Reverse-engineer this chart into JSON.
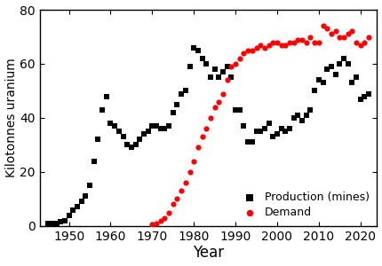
{
  "production_years": [
    1945,
    1946,
    1947,
    1948,
    1949,
    1950,
    1951,
    1952,
    1953,
    1954,
    1955,
    1956,
    1957,
    1958,
    1959,
    1960,
    1961,
    1962,
    1963,
    1964,
    1965,
    1966,
    1967,
    1968,
    1969,
    1970,
    1971,
    1972,
    1973,
    1974,
    1975,
    1976,
    1977,
    1978,
    1979,
    1980,
    1981,
    1982,
    1983,
    1984,
    1985,
    1986,
    1987,
    1988,
    1989,
    1990,
    1991,
    1992,
    1993,
    1994,
    1995,
    1996,
    1997,
    1998,
    1999,
    2000,
    2001,
    2002,
    2003,
    2004,
    2005,
    2006,
    2007,
    2008,
    2009,
    2010,
    2011,
    2012,
    2013,
    2014,
    2015,
    2016,
    2017,
    2018,
    2019,
    2020,
    2021,
    2022
  ],
  "production_values": [
    1.0,
    1.0,
    1.0,
    1.5,
    2.0,
    4.0,
    6.0,
    7.0,
    9.0,
    11.0,
    15.0,
    24.0,
    32.0,
    43.0,
    48.0,
    38.0,
    37.0,
    35.0,
    33.0,
    30.0,
    29.0,
    30.0,
    32.0,
    34.0,
    35.0,
    37.0,
    37.0,
    36.0,
    36.0,
    37.0,
    42.0,
    45.0,
    49.0,
    50.0,
    59.0,
    66.0,
    65.0,
    62.0,
    60.0,
    55.0,
    58.0,
    55.0,
    57.0,
    59.0,
    55.0,
    43.0,
    43.0,
    37.0,
    31.0,
    31.0,
    35.0,
    35.0,
    36.0,
    38.0,
    33.0,
    34.0,
    36.0,
    35.0,
    36.0,
    40.0,
    41.0,
    39.0,
    41.0,
    43.0,
    50.0,
    54.0,
    53.0,
    58.0,
    59.0,
    56.0,
    60.0,
    62.0,
    60.0,
    53.0,
    55.0,
    47.0,
    48.0,
    49.0
  ],
  "demand_years": [
    1970,
    1971,
    1972,
    1973,
    1974,
    1975,
    1976,
    1977,
    1978,
    1979,
    1980,
    1981,
    1982,
    1983,
    1984,
    1985,
    1986,
    1987,
    1988,
    1989,
    1990,
    1991,
    1992,
    1993,
    1994,
    1995,
    1996,
    1997,
    1998,
    1999,
    2000,
    2001,
    2002,
    2003,
    2004,
    2005,
    2006,
    2007,
    2008,
    2009,
    2010,
    2011,
    2012,
    2013,
    2014,
    2015,
    2016,
    2017,
    2018,
    2019,
    2020,
    2021,
    2022
  ],
  "demand_values": [
    0.5,
    1.0,
    2.0,
    3.0,
    5.0,
    8.0,
    10.0,
    13.0,
    16.0,
    20.0,
    24.0,
    29.0,
    33.0,
    36.0,
    40.0,
    44.0,
    46.0,
    49.0,
    54.0,
    59.0,
    60.0,
    62.0,
    64.0,
    65.0,
    65.0,
    66.0,
    67.0,
    66.0,
    67.0,
    68.0,
    68.0,
    67.0,
    67.0,
    68.0,
    68.0,
    69.0,
    69.0,
    68.0,
    70.0,
    68.0,
    68.0,
    74.0,
    73.0,
    71.0,
    72.0,
    70.0,
    70.0,
    71.0,
    72.0,
    68.0,
    67.0,
    68.0,
    70.0
  ],
  "production_color": "#000000",
  "demand_color": "#ff0000",
  "xlabel": "Year",
  "ylabel": "Kilotonnes uranium",
  "xlim": [
    1943,
    2024
  ],
  "ylim": [
    0,
    80
  ],
  "yticks": [
    0,
    20,
    40,
    60,
    80
  ],
  "xticks": [
    1950,
    1960,
    1970,
    1980,
    1990,
    2000,
    2010,
    2020
  ],
  "legend_production": "Production (mines)",
  "legend_demand": "Demand",
  "marker_size_sq": 18,
  "marker_size_circle": 20
}
